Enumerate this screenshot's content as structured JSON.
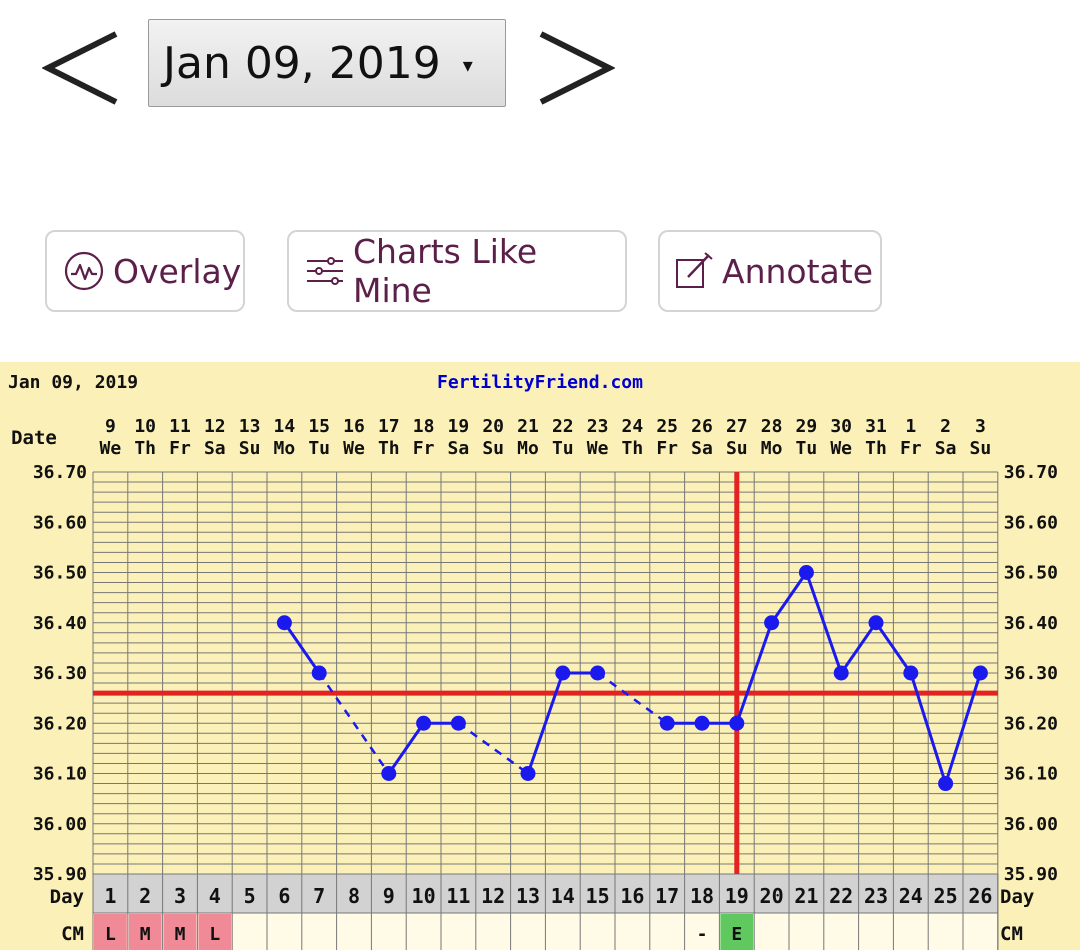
{
  "navigation": {
    "selected_date": "Jan 09, 2019",
    "caret": "▾",
    "prev_icon": "chevron-left-icon",
    "next_icon": "chevron-right-icon"
  },
  "actions": {
    "overlay_label": "Overlay",
    "overlay_icon": "wave-circle-icon",
    "charts_like_mine_label": "Charts Like Mine",
    "charts_like_mine_icon": "sliders-icon",
    "annotate_label": "Annotate",
    "annotate_icon": "edit-icon"
  },
  "colors": {
    "accent_text": "#5c1f4a",
    "chart_background": "#fbf0b8",
    "grid": "#777777",
    "temperature_line": "#1a1aee",
    "coverline": "#e32222",
    "brand_text": "#0000cc",
    "menstruation_cell": "#f08a96",
    "eggwhite_cell": "#5fc85f",
    "label_band": "#d2d2d2"
  },
  "chart_data": {
    "type": "line",
    "header_date": "Jan 09, 2019",
    "brand": "FertilityFriend.com",
    "date_row_label": "Date",
    "day_row_label": "Day",
    "cm_row_label": "CM",
    "dates": [
      "9",
      "10",
      "11",
      "12",
      "13",
      "14",
      "15",
      "16",
      "17",
      "18",
      "19",
      "20",
      "21",
      "22",
      "23",
      "24",
      "25",
      "26",
      "27",
      "28",
      "29",
      "30",
      "31",
      "1",
      "2",
      "3"
    ],
    "weekdays": [
      "We",
      "Th",
      "Fr",
      "Sa",
      "Su",
      "Mo",
      "Tu",
      "We",
      "Th",
      "Fr",
      "Sa",
      "Su",
      "Mo",
      "Tu",
      "We",
      "Th",
      "Fr",
      "Sa",
      "Su",
      "Mo",
      "Tu",
      "We",
      "Th",
      "Fr",
      "Sa",
      "Su"
    ],
    "cycle_days": [
      1,
      2,
      3,
      4,
      5,
      6,
      7,
      8,
      9,
      10,
      11,
      12,
      13,
      14,
      15,
      16,
      17,
      18,
      19,
      20,
      21,
      22,
      23,
      24,
      25,
      26
    ],
    "y_ticks": [
      "36.70",
      "36.60",
      "36.50",
      "36.40",
      "36.30",
      "36.20",
      "36.10",
      "36.00",
      "35.90"
    ],
    "ylim": [
      35.9,
      36.7
    ],
    "temperatures": [
      null,
      null,
      null,
      null,
      null,
      36.4,
      36.3,
      null,
      36.1,
      36.2,
      36.2,
      null,
      36.1,
      36.3,
      36.3,
      null,
      36.2,
      36.2,
      36.2,
      36.4,
      36.5,
      36.3,
      36.4,
      36.3,
      36.08,
      36.3
    ],
    "coverline": 36.26,
    "ovulation_day": 19,
    "cervical_mucus": [
      "L",
      "M",
      "M",
      "L",
      "",
      "",
      "",
      "",
      "",
      "",
      "",
      "",
      "",
      "",
      "",
      "",
      "",
      "-",
      "E",
      "",
      "",
      "",
      "",
      "",
      "",
      ""
    ]
  }
}
